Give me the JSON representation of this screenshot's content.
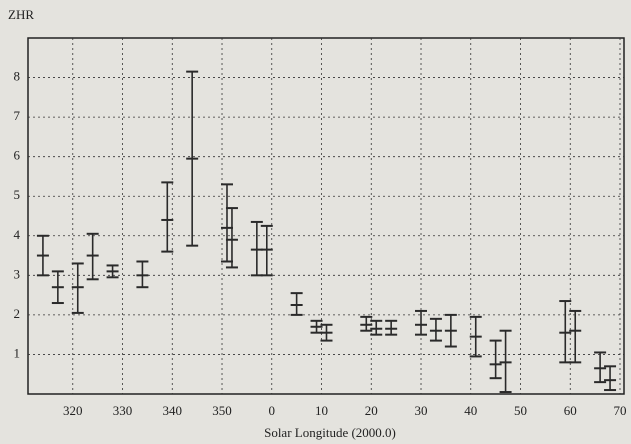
{
  "chart_data": {
    "type": "errorbar",
    "ylabel": "ZHR",
    "xlabel": "Solar Longitude (2000.0)",
    "x": [
      314,
      317,
      321,
      324,
      328,
      334,
      339,
      344,
      351,
      352,
      357,
      359,
      365,
      369,
      371,
      379,
      381,
      384,
      390,
      393,
      396,
      401,
      405,
      407,
      419,
      421,
      426,
      428
    ],
    "values": [
      3.5,
      2.7,
      2.7,
      3.5,
      3.1,
      3.0,
      4.4,
      5.95,
      4.2,
      3.9,
      3.65,
      3.65,
      2.25,
      1.7,
      1.55,
      1.75,
      1.65,
      1.65,
      1.75,
      1.6,
      1.6,
      1.45,
      0.75,
      0.8,
      1.55,
      1.6,
      0.65,
      0.35
    ],
    "low": [
      3.0,
      2.3,
      2.05,
      2.9,
      2.95,
      2.7,
      3.6,
      3.75,
      3.35,
      3.2,
      3.0,
      3.0,
      2.0,
      1.55,
      1.35,
      1.6,
      1.5,
      1.5,
      1.5,
      1.35,
      1.2,
      0.95,
      0.4,
      0.05,
      0.8,
      0.8,
      0.3,
      0.1
    ],
    "high": [
      4.0,
      3.1,
      3.3,
      4.05,
      3.25,
      3.35,
      5.35,
      8.15,
      5.3,
      4.7,
      4.35,
      4.25,
      2.55,
      1.85,
      1.75,
      1.95,
      1.85,
      1.85,
      2.1,
      1.9,
      2.0,
      1.95,
      1.35,
      1.6,
      2.35,
      2.1,
      1.05,
      0.7
    ],
    "color": "#2a2a2a",
    "xlim": [
      311,
      430
    ],
    "xticks": [
      320,
      330,
      340,
      350,
      {
        "value": 360,
        "label": "0"
      },
      {
        "value": 370,
        "label": "10"
      },
      {
        "value": 380,
        "label": "20"
      },
      {
        "value": 390,
        "label": "30"
      },
      {
        "value": 400,
        "label": "40"
      },
      {
        "value": 410,
        "label": "50"
      },
      {
        "value": 420,
        "label": "60"
      },
      {
        "value": 430,
        "label": "70"
      }
    ],
    "ylim": [
      0,
      9
    ],
    "yticks": [
      1,
      2,
      3,
      4,
      5,
      6,
      7,
      8
    ],
    "grid": true
  }
}
